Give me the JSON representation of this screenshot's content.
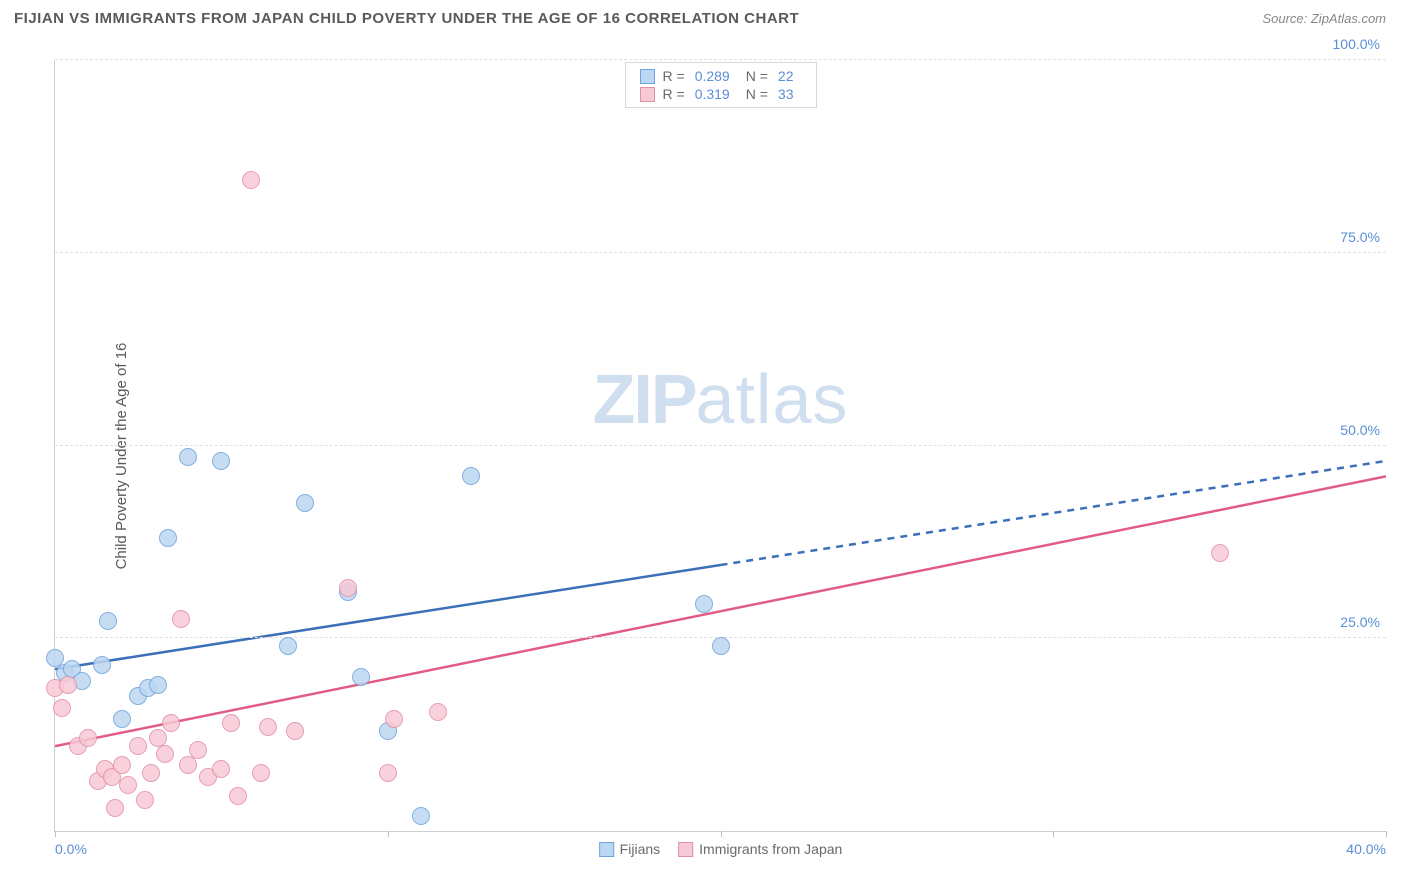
{
  "header": {
    "title": "FIJIAN VS IMMIGRANTS FROM JAPAN CHILD POVERTY UNDER THE AGE OF 16 CORRELATION CHART",
    "source": "Source: ZipAtlas.com"
  },
  "chart": {
    "type": "scatter",
    "ylabel": "Child Poverty Under the Age of 16",
    "xlim": [
      0,
      40
    ],
    "ylim": [
      0,
      100
    ],
    "xticks": [
      0,
      20,
      40
    ],
    "xtick_labels": [
      "0.0%",
      "",
      "40.0%"
    ],
    "xtick_minor": [
      10,
      30
    ],
    "yticks": [
      25,
      50,
      75,
      100
    ],
    "ytick_labels": [
      "25.0%",
      "50.0%",
      "75.0%",
      "100.0%"
    ],
    "grid_color": "#e0e0e0",
    "background_color": "#ffffff",
    "marker_size": 18,
    "watermark": "ZIPatlas",
    "series": [
      {
        "name": "Fijians",
        "fill": "#bcd7f1",
        "stroke": "#6fa3db",
        "r_label": "R =",
        "r_value": "0.289",
        "n_label": "N =",
        "n_value": "22",
        "trend": {
          "solid": {
            "x1": 0,
            "y1": 21,
            "x2": 20,
            "y2": 34.5
          },
          "dashed": {
            "x1": 20,
            "y1": 34.5,
            "x2": 40,
            "y2": 48
          },
          "color": "#3b6fb8",
          "width": 2.5
        },
        "points": [
          [
            0.0,
            22.5
          ],
          [
            0.3,
            20.5
          ],
          [
            0.5,
            21.0
          ],
          [
            0.8,
            19.5
          ],
          [
            1.4,
            21.5
          ],
          [
            1.6,
            27.3
          ],
          [
            2.0,
            14.5
          ],
          [
            2.5,
            17.5
          ],
          [
            2.8,
            18.5
          ],
          [
            3.1,
            19.0
          ],
          [
            3.4,
            38.0
          ],
          [
            4.0,
            48.5
          ],
          [
            5.0,
            48.0
          ],
          [
            7.0,
            24.0
          ],
          [
            7.5,
            42.5
          ],
          [
            8.8,
            31.0
          ],
          [
            9.2,
            20.0
          ],
          [
            10.0,
            13.0
          ],
          [
            11.0,
            2.0
          ],
          [
            12.5,
            46.0
          ],
          [
            19.5,
            29.5
          ],
          [
            20.0,
            24.0
          ]
        ]
      },
      {
        "name": "Immigrants from Japan",
        "fill": "#f7c9d6",
        "stroke": "#e38fa6",
        "r_label": "R =",
        "r_value": "0.319",
        "n_label": "N =",
        "n_value": "33",
        "trend": {
          "solid": {
            "x1": 0,
            "y1": 11,
            "x2": 40,
            "y2": 46
          },
          "color": "#e15b84",
          "width": 2.5
        },
        "points": [
          [
            0.0,
            18.5
          ],
          [
            0.2,
            16.0
          ],
          [
            0.4,
            19.0
          ],
          [
            0.7,
            11.0
          ],
          [
            1.0,
            12.0
          ],
          [
            1.3,
            6.5
          ],
          [
            1.5,
            8.0
          ],
          [
            1.7,
            7.0
          ],
          [
            1.8,
            3.0
          ],
          [
            2.0,
            8.5
          ],
          [
            2.2,
            6.0
          ],
          [
            2.5,
            11.0
          ],
          [
            2.7,
            4.0
          ],
          [
            2.9,
            7.5
          ],
          [
            3.1,
            12.0
          ],
          [
            3.3,
            10.0
          ],
          [
            3.5,
            14.0
          ],
          [
            3.8,
            27.5
          ],
          [
            4.0,
            8.5
          ],
          [
            4.3,
            10.5
          ],
          [
            4.6,
            7.0
          ],
          [
            5.0,
            8.0
          ],
          [
            5.3,
            14.0
          ],
          [
            5.5,
            4.5
          ],
          [
            5.9,
            84.5
          ],
          [
            6.2,
            7.5
          ],
          [
            6.4,
            13.5
          ],
          [
            7.2,
            13.0
          ],
          [
            8.8,
            31.5
          ],
          [
            10.2,
            14.5
          ],
          [
            10.0,
            7.5
          ],
          [
            11.5,
            15.5
          ],
          [
            35.0,
            36.0
          ]
        ]
      }
    ]
  }
}
